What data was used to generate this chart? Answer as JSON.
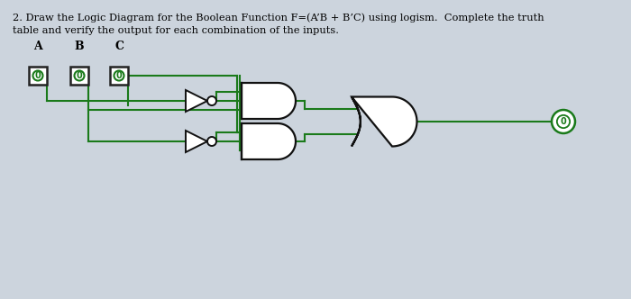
{
  "title_line1": "2. Draw the Logic Diagram for the Boolean Function F=(A’B + B’C) using logism.  Complete the truth",
  "title_line2": "table and verify the output for each combination of the inputs.",
  "bg_color": "#ccd4dd",
  "line_color": "#1a7a1a",
  "gate_edge_color": "#111111",
  "figsize": [
    7.0,
    3.32
  ],
  "dpi": 100,
  "input_labels": [
    "A",
    "B",
    "C"
  ],
  "zero_val": "0",
  "lw": 1.5
}
